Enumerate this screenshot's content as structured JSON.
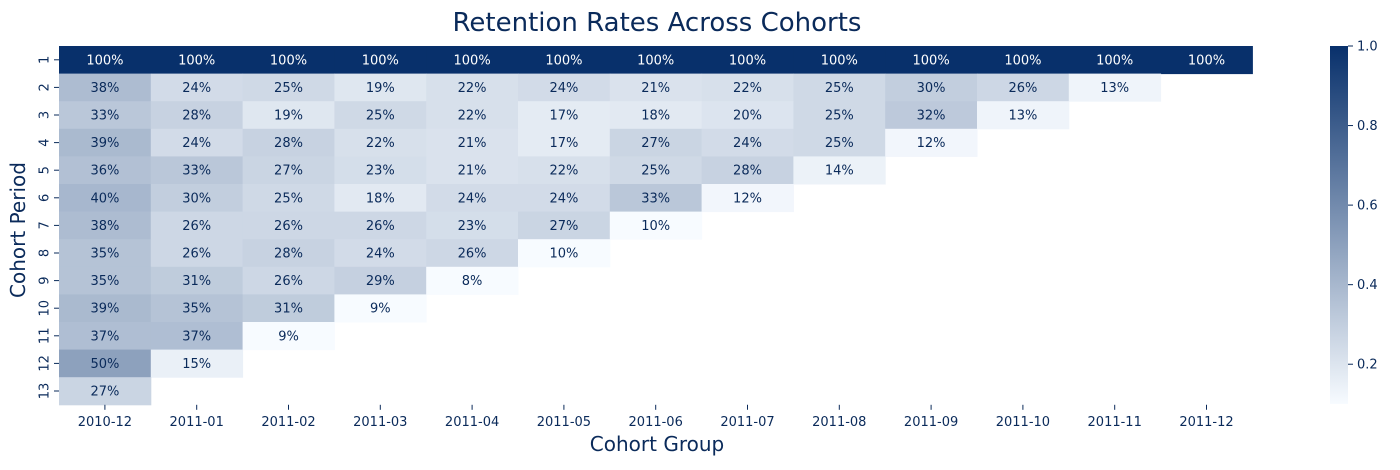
{
  "chart_data": {
    "type": "heatmap",
    "title": "Retention Rates Across Cohorts",
    "xlabel": "Cohort Group",
    "ylabel": "Cohort Period",
    "x_categories": [
      "2010-12",
      "2011-01",
      "2011-02",
      "2011-03",
      "2011-04",
      "2011-05",
      "2011-06",
      "2011-07",
      "2011-08",
      "2011-09",
      "2011-10",
      "2011-11",
      "2011-12"
    ],
    "y_categories": [
      "1",
      "2",
      "3",
      "4",
      "5",
      "6",
      "7",
      "8",
      "9",
      "10",
      "11",
      "12",
      "13"
    ],
    "values": [
      [
        100,
        100,
        100,
        100,
        100,
        100,
        100,
        100,
        100,
        100,
        100,
        100,
        100
      ],
      [
        38,
        24,
        25,
        19,
        22,
        24,
        21,
        22,
        25,
        30,
        26,
        13,
        null
      ],
      [
        33,
        28,
        19,
        25,
        22,
        17,
        18,
        20,
        25,
        32,
        13,
        null,
        null
      ],
      [
        39,
        24,
        28,
        22,
        21,
        17,
        27,
        24,
        25,
        12,
        null,
        null,
        null
      ],
      [
        36,
        33,
        27,
        23,
        21,
        22,
        25,
        28,
        14,
        null,
        null,
        null,
        null
      ],
      [
        40,
        30,
        25,
        18,
        24,
        24,
        33,
        12,
        null,
        null,
        null,
        null,
        null
      ],
      [
        38,
        26,
        26,
        26,
        23,
        27,
        10,
        null,
        null,
        null,
        null,
        null,
        null
      ],
      [
        35,
        26,
        28,
        24,
        26,
        10,
        null,
        null,
        null,
        null,
        null,
        null,
        null
      ],
      [
        35,
        31,
        26,
        29,
        8,
        null,
        null,
        null,
        null,
        null,
        null,
        null,
        null
      ],
      [
        39,
        35,
        31,
        9,
        null,
        null,
        null,
        null,
        null,
        null,
        null,
        null,
        null
      ],
      [
        37,
        37,
        9,
        null,
        null,
        null,
        null,
        null,
        null,
        null,
        null,
        null,
        null
      ],
      [
        50,
        15,
        null,
        null,
        null,
        null,
        null,
        null,
        null,
        null,
        null,
        null,
        null
      ],
      [
        27,
        null,
        null,
        null,
        null,
        null,
        null,
        null,
        null,
        null,
        null,
        null,
        null
      ]
    ],
    "value_suffix": "%",
    "colorbar": {
      "min": 0.1,
      "max": 1.0,
      "ticks": [
        "0.2",
        "0.4",
        "0.6",
        "0.8",
        "1.0"
      ]
    },
    "colors": {
      "low": "#f7fbff",
      "high": "#08306b",
      "text_dark": "#0a2a5a",
      "text_light": "#ffffff"
    }
  }
}
